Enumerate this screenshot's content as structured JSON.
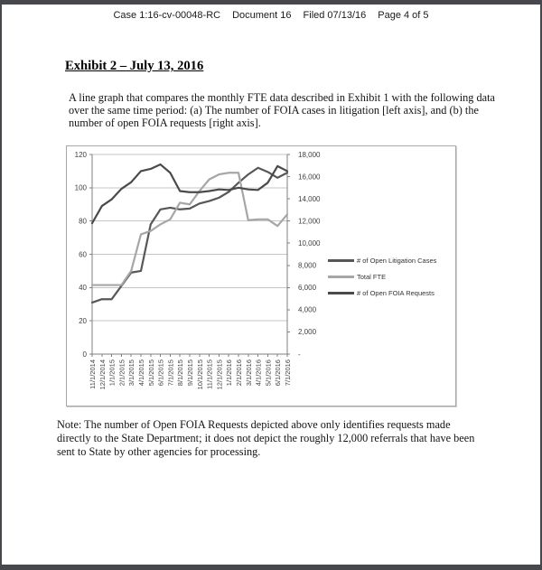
{
  "header": {
    "parts": [
      "Case 1:16-cv-00048-RC",
      "Document 16",
      "Filed 07/13/16",
      "Page 4 of 5"
    ]
  },
  "exhibit": {
    "title": "Exhibit 2 – July 13, 2016"
  },
  "description": {
    "lines": [
      "A line graph that compares the monthly FTE data described in Exhibit 1 with the following data",
      "over the same time period: (a) The number of FOIA cases in litigation [left axis], and (b) the",
      "number of open FOIA requests [right axis]."
    ]
  },
  "note": {
    "lines": [
      "Note:  The number of Open FOIA Requests depicted above only identifies requests made",
      "directly to the State Department; it does not depict the roughly 12,000 referrals that have been",
      "sent to State by other agencies for processing."
    ]
  },
  "chart_data": {
    "type": "line",
    "title": "",
    "grid": true,
    "legend_position": "right",
    "categories": [
      "11/1/2014",
      "12/1/2014",
      "1/1/2015",
      "2/1/2015",
      "3/1/2015",
      "4/1/2015",
      "5/1/2015",
      "6/1/2015",
      "7/1/2015",
      "8/1/2015",
      "9/1/2015",
      "10/1/2015",
      "11/1/2015",
      "12/1/2015",
      "1/1/2016",
      "2/1/2016",
      "3/1/2016",
      "4/1/2016",
      "5/1/2016",
      "6/1/2016",
      "7/1/2016"
    ],
    "series": [
      {
        "name": "# of Open Litigation Cases",
        "axis": "left",
        "color": "#575757",
        "values": [
          31,
          33,
          33,
          41,
          49,
          50,
          78,
          87,
          88,
          87,
          87.5,
          90.5,
          92,
          94,
          97.5,
          103,
          108,
          112,
          109.5,
          106,
          109
        ]
      },
      {
        "name": "Total FTE",
        "axis": "left",
        "color": "#a6a6a6",
        "values": [
          41.5,
          41.5,
          41.5,
          41.5,
          50,
          72,
          74,
          78,
          81,
          91,
          90,
          98,
          105,
          108,
          109,
          109,
          80.5,
          81,
          81,
          77,
          84
        ]
      },
      {
        "name": "# of Open FOIA Requests",
        "axis": "right",
        "color": "#4a4a4a",
        "values": [
          11800,
          13350,
          13950,
          14900,
          15500,
          16500,
          16700,
          17100,
          16350,
          14700,
          14600,
          14600,
          14700,
          14850,
          14800,
          15000,
          14850,
          14800,
          15450,
          16950,
          16500
        ]
      }
    ],
    "left_axis": {
      "min": 0,
      "max": 120,
      "step": 20,
      "ticks": [
        "120",
        "100",
        "80",
        "60",
        "40",
        "20",
        "0"
      ]
    },
    "right_axis": {
      "min": 0,
      "max": 18000,
      "step": 2000,
      "ticks": [
        "18,000",
        "16,000",
        "14,000",
        "12,000",
        "10,000",
        "8,000",
        "6,000",
        "4,000",
        "2,000",
        "-"
      ]
    }
  }
}
